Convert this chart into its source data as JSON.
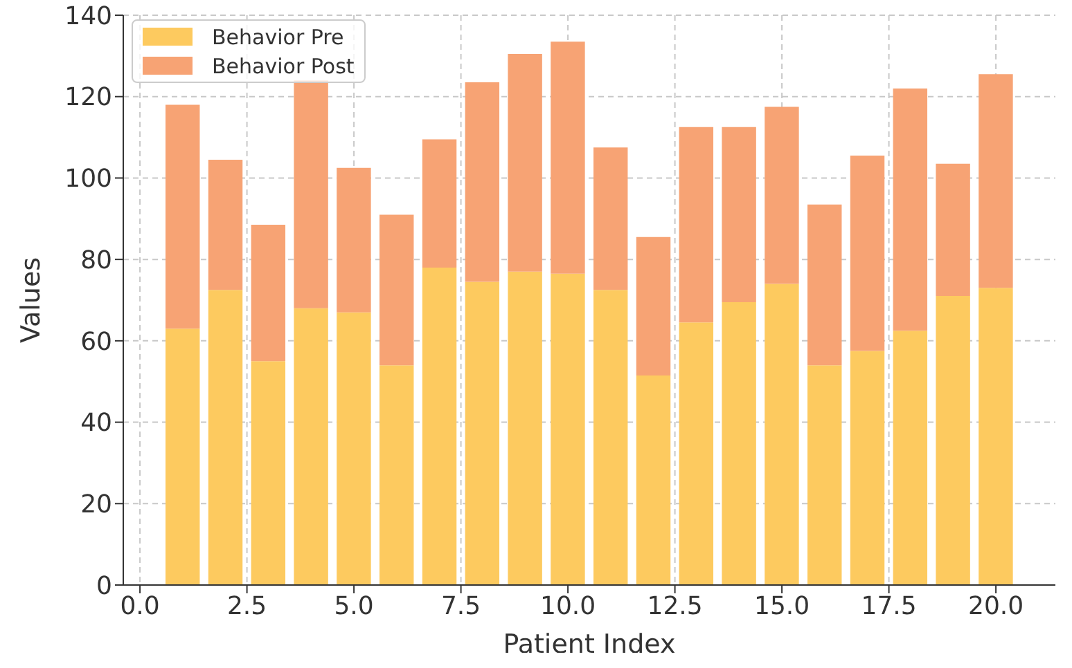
{
  "chart_data": {
    "type": "bar",
    "xlabel": "Patient Index",
    "ylabel": "Values",
    "x": [
      1,
      2,
      3,
      4,
      5,
      6,
      7,
      8,
      9,
      10,
      11,
      12,
      13,
      14,
      15,
      16,
      17,
      18,
      19,
      20
    ],
    "stacked": true,
    "series": [
      {
        "name": "Behavior Pre",
        "color": "#fdca5f",
        "values": [
          63,
          72.5,
          55,
          68,
          67,
          54,
          78,
          74.5,
          77,
          76.5,
          72.5,
          51.5,
          64.5,
          69.5,
          74,
          54,
          57.5,
          62.5,
          71,
          73
        ]
      },
      {
        "name": "Behavior Post",
        "color": "#f7a374",
        "values": [
          55,
          32,
          33.5,
          56,
          35.5,
          37,
          31.5,
          49,
          53.5,
          57,
          35,
          34,
          48,
          43,
          43.5,
          39.5,
          48,
          59.5,
          32.5,
          52.5
        ]
      }
    ],
    "xlim": [
      -0.39,
      21.39
    ],
    "xticks": [
      {
        "value": 0,
        "label": "0.0"
      },
      {
        "value": 2.5,
        "label": "2.5"
      },
      {
        "value": 5,
        "label": "5.0"
      },
      {
        "value": 7.5,
        "label": "7.5"
      },
      {
        "value": 10,
        "label": "10.0"
      },
      {
        "value": 12.5,
        "label": "12.5"
      },
      {
        "value": 15,
        "label": "15.0"
      },
      {
        "value": 17.5,
        "label": "17.5"
      },
      {
        "value": 20,
        "label": "20.0"
      }
    ],
    "ylim": [
      0,
      140
    ],
    "yticks": [
      0,
      20,
      40,
      60,
      80,
      100,
      120,
      140
    ],
    "grid": true,
    "legend": "top left"
  }
}
